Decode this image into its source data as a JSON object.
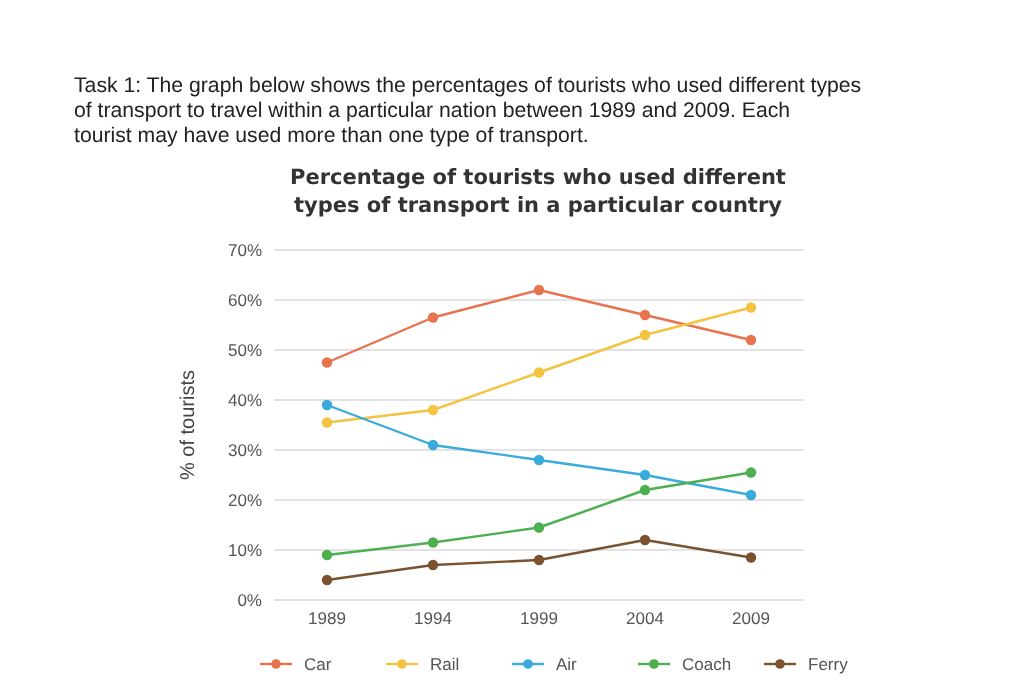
{
  "chart_data": {
    "type": "line",
    "title": "Percentage of tourists who used different types of transport in a particular country",
    "annotations": [
      "Task 1: The graph below shows the percentages of tourists who used different types of transport to travel within a particular nation between 1989 and 2009. Each tourist may have used more than one type of transport."
    ],
    "ylabel": "% of tourists",
    "categories": [
      "1989",
      "1994",
      "1999",
      "2004",
      "2009"
    ],
    "series": [
      {
        "name": "Car",
        "color": "#e8734f",
        "values": [
          47.5,
          56.5,
          62,
          57,
          52
        ]
      },
      {
        "name": "Rail",
        "color": "#f5c342",
        "values": [
          35.5,
          38,
          45.5,
          53,
          58.5
        ]
      },
      {
        "name": "Air",
        "color": "#3aabdb",
        "values": [
          39,
          31,
          28,
          25,
          21
        ]
      },
      {
        "name": "Coach",
        "color": "#4caf50",
        "values": [
          9,
          11.5,
          14.5,
          22,
          25.5
        ]
      },
      {
        "name": "Ferry",
        "color": "#7a5230",
        "values": [
          4,
          7,
          8,
          12,
          8.5
        ]
      }
    ],
    "ylim": [
      0,
      70
    ],
    "yticks": [
      {
        "value": 0,
        "label": "0%"
      },
      {
        "value": 10,
        "label": "10%"
      },
      {
        "value": 20,
        "label": "20%"
      },
      {
        "value": 30,
        "label": "30%"
      },
      {
        "value": 40,
        "label": "40%"
      },
      {
        "value": 50,
        "label": "50%"
      },
      {
        "value": 60,
        "label": "60%"
      },
      {
        "value": 70,
        "label": "70%"
      }
    ],
    "grid": "y",
    "legend": "bottom",
    "marker": "circle",
    "line_style": "solid"
  }
}
